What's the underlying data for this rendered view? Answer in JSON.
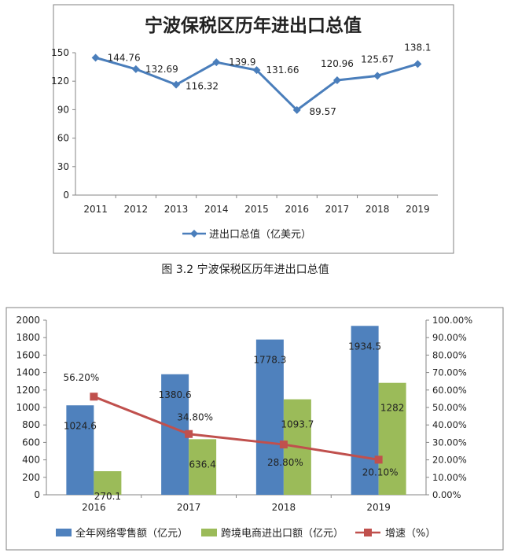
{
  "chart_data": [
    {
      "type": "line",
      "title": "宁波保税区历年进出口总值",
      "categories": [
        "2011",
        "2012",
        "2013",
        "2014",
        "2015",
        "2016",
        "2017",
        "2018",
        "2019"
      ],
      "series": [
        {
          "name": "进出口总值（亿美元）",
          "values": [
            144.76,
            132.69,
            116.32,
            139.9,
            131.66,
            89.57,
            120.96,
            125.67,
            138.1
          ],
          "color": "#4a7ebb"
        }
      ],
      "ylim": [
        0,
        150
      ],
      "yticks": [
        0,
        30,
        60,
        90,
        120,
        150
      ],
      "grid": false,
      "legend": "bottom"
    },
    {
      "type": "bar",
      "categories": [
        "2016",
        "2017",
        "2018",
        "2019"
      ],
      "series": [
        {
          "name": "全年网络零售额（亿元）",
          "values": [
            1024.6,
            1380.6,
            1778.3,
            1934.5
          ],
          "color": "#4f81bd"
        },
        {
          "name": "跨境电商进出口额（亿元）",
          "values": [
            270.1,
            636.4,
            1093.7,
            1282
          ],
          "color": "#9bbb59"
        }
      ],
      "line_series": {
        "name": "增速（%）",
        "values": [
          56.2,
          34.8,
          28.8,
          20.1
        ],
        "labels": [
          "56.20%",
          "34.80%",
          "28.80%",
          "20.10%"
        ],
        "color": "#c0504d",
        "axis": "right"
      },
      "ylim": [
        0,
        2000
      ],
      "yticks": [
        "0",
        "200",
        "400",
        "600",
        "800",
        "1000",
        "1200",
        "1400",
        "1600",
        "1800",
        "2000"
      ],
      "y2lim": [
        0,
        100
      ],
      "y2ticks": [
        "0.00%",
        "10.00%",
        "20.00%",
        "30.00%",
        "40.00%",
        "50.00%",
        "60.00%",
        "70.00%",
        "80.00%",
        "90.00%",
        "100.00%"
      ],
      "grid": false,
      "legend": "bottom"
    }
  ],
  "caption1": "图 3.2  宁波保税区历年进出口总值"
}
